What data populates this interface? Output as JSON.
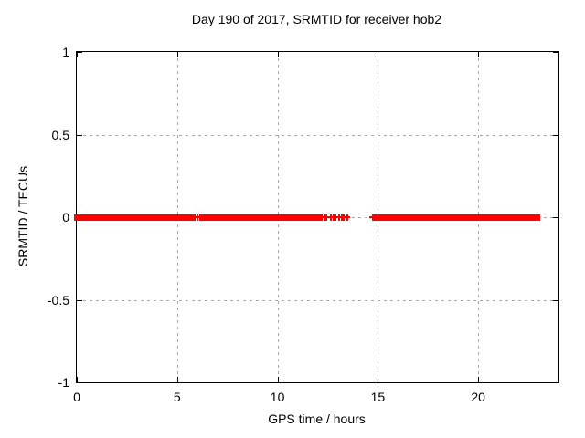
{
  "chart_data": {
    "type": "scatter",
    "title": "Day 190 of 2017, SRMTID for receiver hob2",
    "xlabel": "GPS time / hours",
    "ylabel": "SRMTID / TECUs",
    "xlim": [
      0,
      24
    ],
    "ylim": [
      -1,
      1
    ],
    "xticks": [
      0,
      5,
      10,
      15,
      20
    ],
    "xtick_labels": [
      "0",
      "5",
      "10",
      "15",
      "20"
    ],
    "yticks": [
      1,
      0.5,
      0,
      -0.5,
      -1
    ],
    "ytick_labels": [
      "1",
      "0.5",
      "0",
      "-0.5",
      "-1"
    ],
    "grid": true,
    "legend_position": "none",
    "marker": "plus",
    "point_color": "#ff0000",
    "grid_color": "#a9a9a9",
    "axis_color": "#000000",
    "background_color": "#ffffff",
    "y_value": 0,
    "dense_segments_hours": [
      [
        0.0,
        5.77
      ],
      [
        6.25,
        6.68
      ],
      [
        6.9,
        11.23
      ],
      [
        11.36,
        12.05
      ],
      [
        14.95,
        20.35
      ],
      [
        20.5,
        21.8
      ],
      [
        22.0,
        22.95
      ]
    ],
    "sparse_points_hours": [
      6.0,
      12.2,
      12.32,
      12.45,
      12.64,
      12.78,
      12.9,
      13.05,
      13.2,
      13.32,
      13.48,
      14.75,
      20.42,
      21.9
    ]
  }
}
